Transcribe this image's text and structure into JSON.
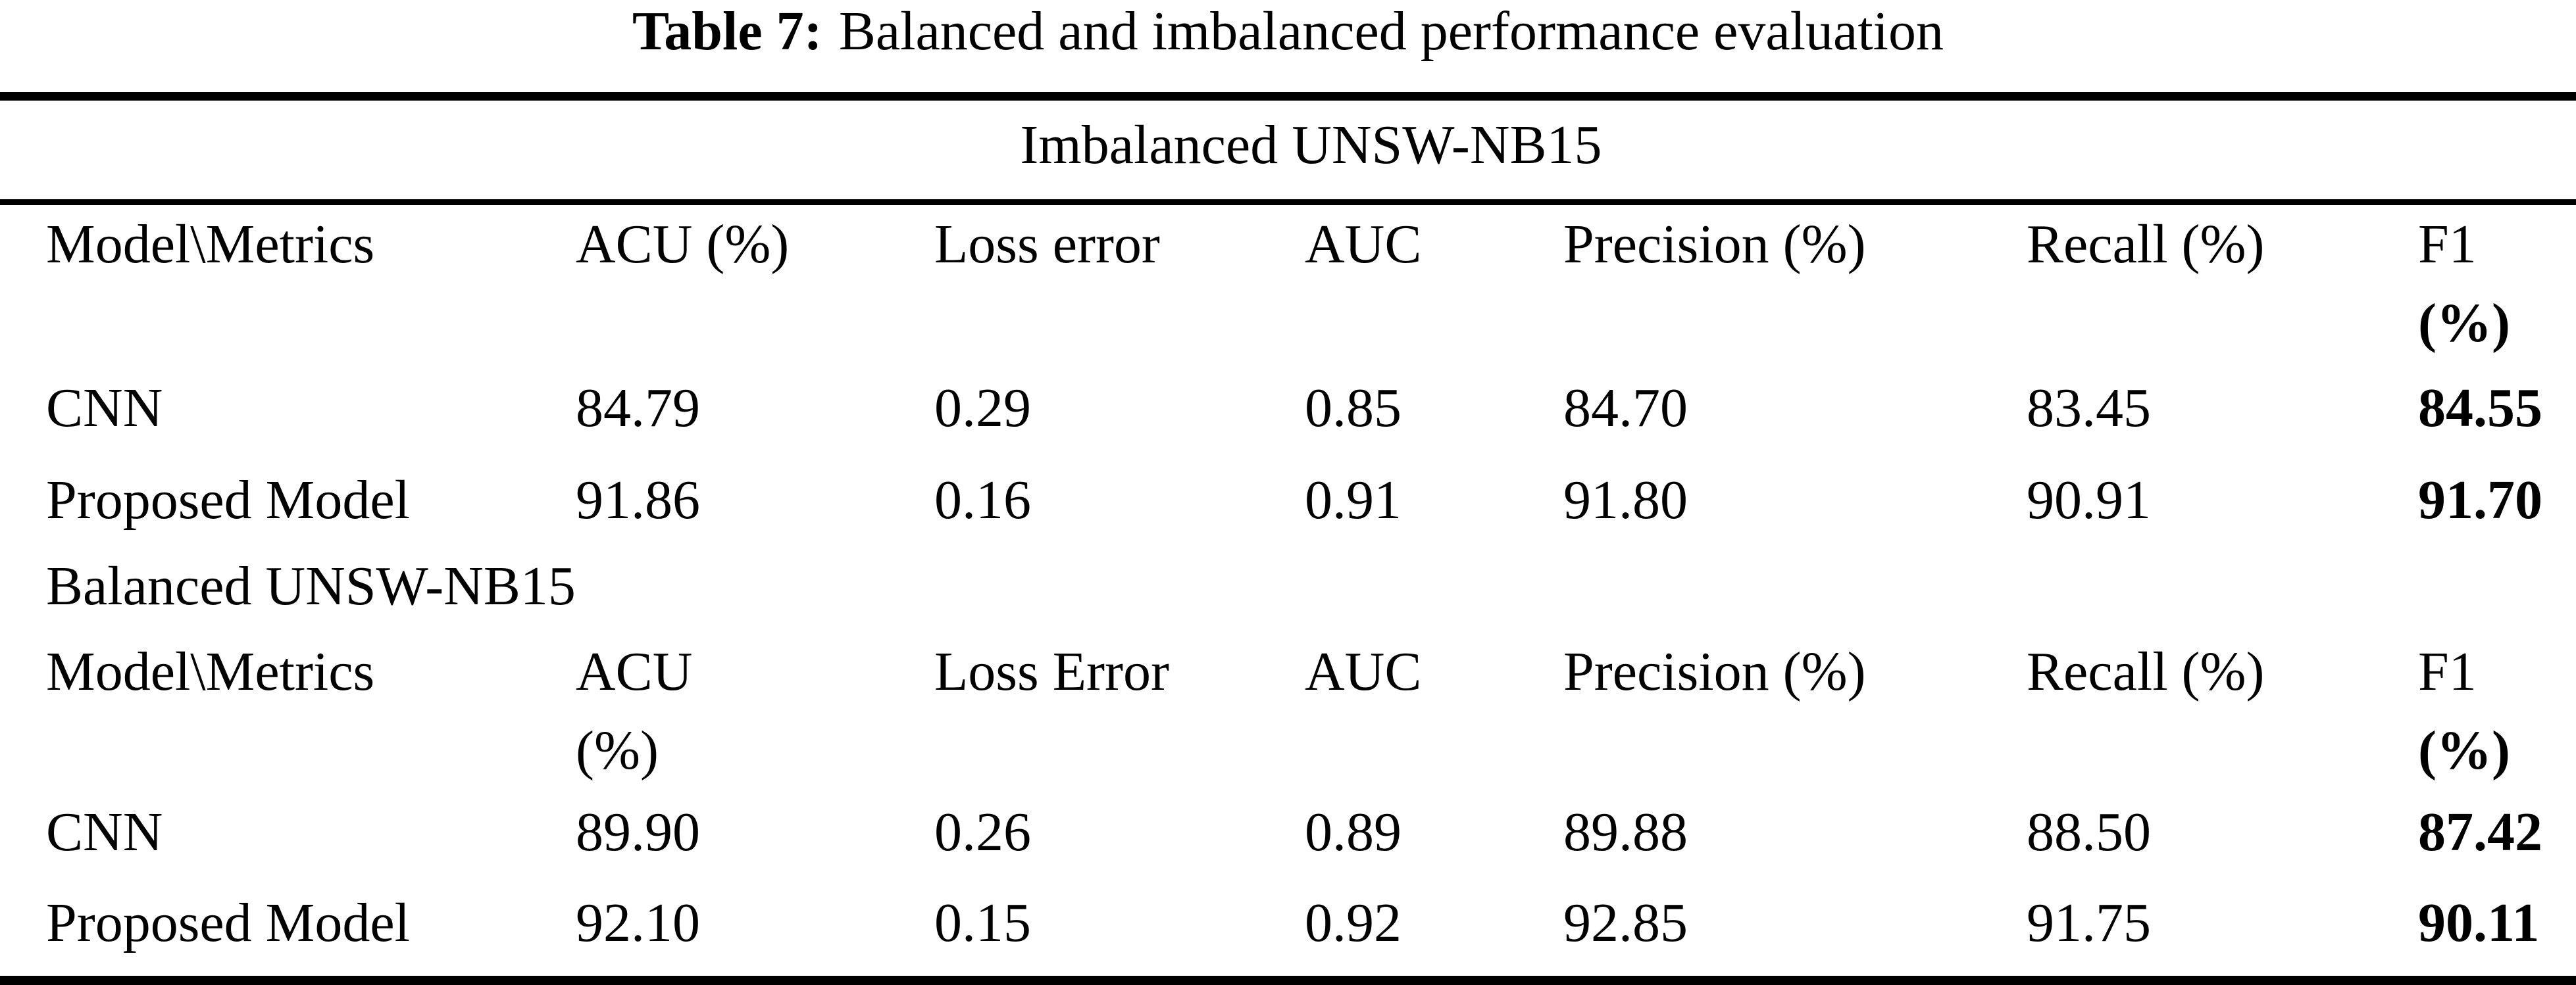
{
  "colors": {
    "text": "#000000",
    "background": "#ffffff"
  },
  "table": {
    "caption_label": "Table 7:",
    "caption_text": "Balanced and imbalanced performance evaluation",
    "sections": [
      {
        "title": "Imbalanced UNSW-NB15",
        "columns": [
          {
            "line1": "Model\\Metrics",
            "line2": ""
          },
          {
            "line1": "ACU (%)",
            "line2": ""
          },
          {
            "line1": "Loss error",
            "line2": ""
          },
          {
            "line1": "AUC",
            "line2": ""
          },
          {
            "line1": "Precision (%)",
            "line2": ""
          },
          {
            "line1": "Recall (%)",
            "line2": ""
          },
          {
            "line1": "F1",
            "line2": "(%)"
          }
        ],
        "rows": [
          {
            "model": "CNN",
            "acu": "84.79",
            "loss": "0.29",
            "auc": "0.85",
            "precision": "84.70",
            "recall": "83.45",
            "f1": "84.55"
          },
          {
            "model": "Proposed Model",
            "acu": "91.86",
            "loss": "0.16",
            "auc": "0.91",
            "precision": "91.80",
            "recall": "90.91",
            "f1": "91.70"
          }
        ]
      },
      {
        "title": "Balanced UNSW-NB15",
        "columns": [
          {
            "line1": "Model\\Metrics",
            "line2": ""
          },
          {
            "line1": "ACU",
            "line2": "(%)"
          },
          {
            "line1": "Loss Error",
            "line2": ""
          },
          {
            "line1": "AUC",
            "line2": ""
          },
          {
            "line1": "Precision (%)",
            "line2": ""
          },
          {
            "line1": "Recall (%)",
            "line2": ""
          },
          {
            "line1": "F1",
            "line2": "(%)"
          }
        ],
        "rows": [
          {
            "model": "CNN",
            "acu": "89.90",
            "loss": "0.26",
            "auc": "0.89",
            "precision": "89.88",
            "recall": "88.50",
            "f1": "87.42"
          },
          {
            "model": "Proposed Model",
            "acu": "92.10",
            "loss": "0.15",
            "auc": "0.92",
            "precision": "92.85",
            "recall": "91.75",
            "f1": "90.11"
          }
        ]
      }
    ]
  }
}
